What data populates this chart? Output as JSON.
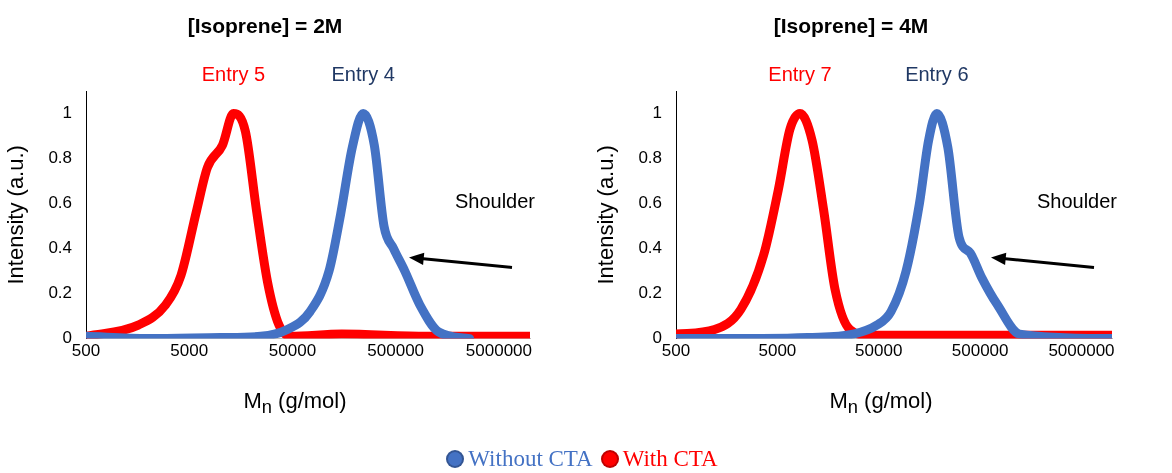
{
  "chart_data": [
    {
      "type": "line",
      "title": "[Isoprene] = 2M",
      "xlabel": "M$_{n}$ (g/mol)",
      "ylabel": "Intensity (a.u.)",
      "log": "x",
      "xlim": [
        500,
        10000000
      ],
      "xticks": [
        500,
        5000,
        50000,
        500000,
        5000000
      ],
      "ylim": [
        0,
        1.1
      ],
      "yticks": [
        0,
        0.2,
        0.4,
        0.6,
        0.8,
        1
      ],
      "grid": false,
      "legend": "bottom",
      "annotations": [
        {
          "text": "Entry 5",
          "x": 13400,
          "y": 1
        },
        {
          "text": "Entry 4",
          "x": 242000,
          "y": 1
        },
        "Shoulder"
      ],
      "series": [
        {
          "name": "Without CTA",
          "color": "#4472c4",
          "x": [
            500,
            2000,
            10000,
            24600,
            44600,
            74000,
            113000,
            146000,
            190000,
            242000,
            310000,
            385000,
            477000,
            613000,
            856000,
            1300000,
            2600000
          ],
          "values": [
            0.01,
            0.0,
            0.005,
            0.01,
            0.04,
            0.12,
            0.3,
            0.55,
            0.85,
            1.0,
            0.86,
            0.5,
            0.4,
            0.3,
            0.15,
            0.03,
            0.0
          ]
        },
        {
          "name": "With CTA",
          "color": "#ff0000",
          "x": [
            500,
            1600,
            2950,
            4150,
            5900,
            7500,
            10500,
            13400,
            17500,
            22400,
            28700,
            37000,
            48000,
            150000,
            1000000,
            10000000
          ],
          "values": [
            0.01,
            0.06,
            0.15,
            0.28,
            0.57,
            0.76,
            0.86,
            1.0,
            0.92,
            0.57,
            0.25,
            0.06,
            0.01,
            0.02,
            0.01,
            0.01
          ]
        }
      ]
    },
    {
      "type": "line",
      "title": "[Isoprene] = 4M",
      "xlabel": "M$_{n}$ (g/mol)",
      "ylabel": "Intensity (a.u.)",
      "log": "x",
      "xlim": [
        500,
        10000000
      ],
      "xticks": [
        500,
        5000,
        50000,
        500000,
        5000000
      ],
      "ylim": [
        0,
        1.1
      ],
      "yticks": [
        0,
        0.2,
        0.4,
        0.6,
        0.8,
        1
      ],
      "grid": false,
      "annotations": [
        {
          "text": "Entry 7",
          "x": 8350,
          "y": 1
        },
        {
          "text": "Entry 6",
          "x": 187000,
          "y": 1
        },
        "Shoulder"
      ],
      "series": [
        {
          "color": "#4472c4",
          "x": [
            500,
            2000,
            10000,
            28000,
            48000,
            66000,
            93000,
            126000,
            155000,
            187000,
            240000,
            310000,
            400000,
            520000,
            740000,
            1230000,
            10000000
          ],
          "values": [
            0.0,
            0.0,
            0.005,
            0.02,
            0.06,
            0.12,
            0.3,
            0.6,
            0.88,
            1.0,
            0.85,
            0.45,
            0.38,
            0.27,
            0.15,
            0.02,
            0.0
          ]
        },
        {
          "color": "#ff0000",
          "x": [
            500,
            1200,
            2180,
            3650,
            5100,
            6650,
            8350,
            11000,
            14300,
            18500,
            26000,
            40000,
            10000000
          ],
          "values": [
            0.02,
            0.04,
            0.13,
            0.37,
            0.66,
            0.93,
            1.0,
            0.88,
            0.57,
            0.22,
            0.04,
            0.015,
            0.015
          ]
        }
      ]
    }
  ]
}
